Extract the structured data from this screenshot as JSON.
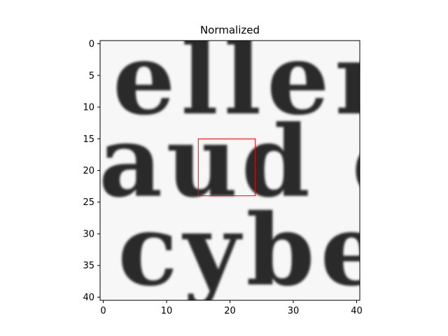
{
  "chart_data": {
    "type": "heatmap",
    "title": "Normalized",
    "xlabel": "",
    "ylabel": "",
    "xlim": [
      -0.5,
      40.5
    ],
    "ylim": [
      40.5,
      -0.5
    ],
    "x_ticks": [
      0,
      10,
      20,
      30,
      40
    ],
    "y_ticks": [
      0,
      5,
      10,
      15,
      20,
      25,
      30,
      35,
      40
    ],
    "colormap": "gray",
    "image_text_rows": [
      {
        "text": "eller",
        "baseline_row": 11
      },
      {
        "text": "aud c",
        "baseline_row": 24
      },
      {
        "text": "cybe",
        "baseline_row": 38
      }
    ],
    "annotation_box": {
      "x_min": 15,
      "x_max": 24,
      "y_min": 15,
      "y_max": 24,
      "color": "#ff0000"
    }
  }
}
